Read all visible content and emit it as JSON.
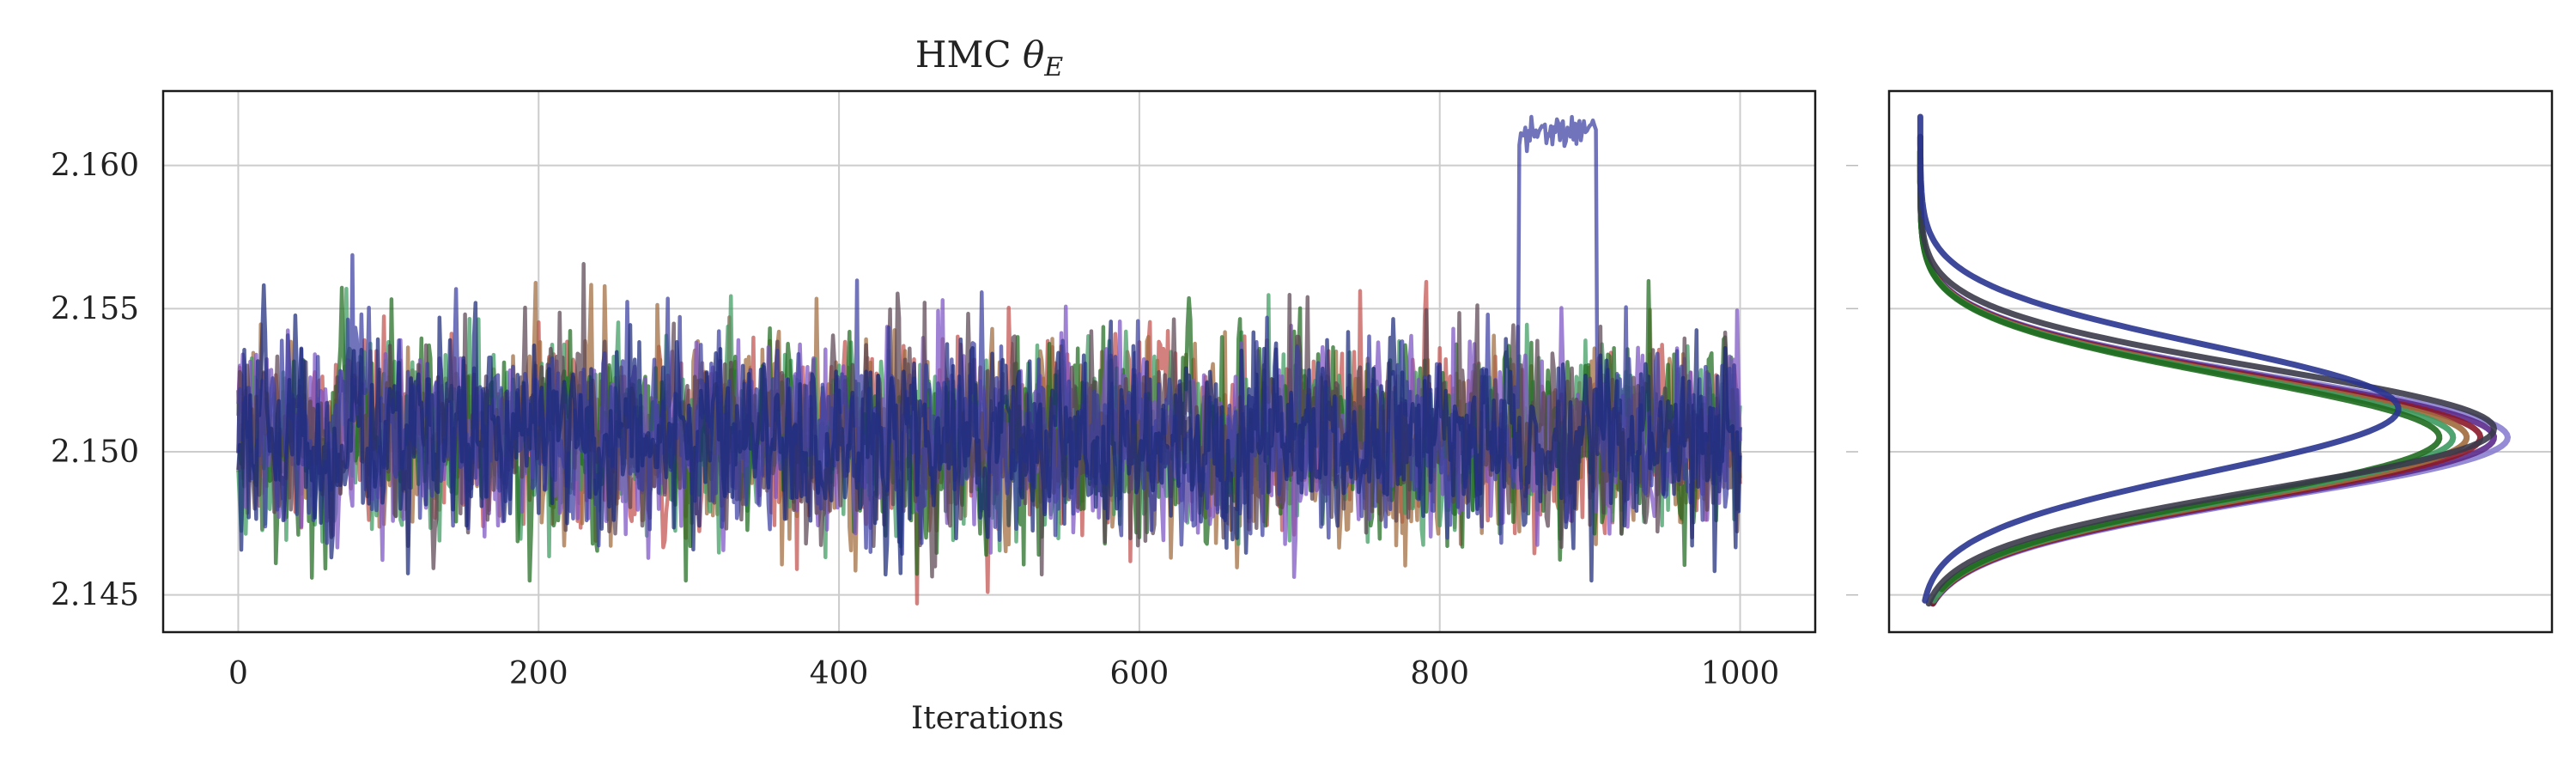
{
  "chart_data": [
    {
      "type": "line",
      "title": "HMC θ_E",
      "title_main": "HMC ",
      "title_symbol": "θ",
      "title_subscript": "E",
      "xlabel": "Iterations",
      "ylabel": "",
      "xlim": [
        -50,
        1050
      ],
      "ylim": [
        2.1437,
        2.1626
      ],
      "xticks": [
        0,
        200,
        400,
        600,
        800,
        1000
      ],
      "xtick_labels": [
        "0",
        "200",
        "400",
        "600",
        "800",
        "1000"
      ],
      "yticks": [
        2.145,
        2.15,
        2.155,
        2.16
      ],
      "ytick_labels": [
        "2.145",
        "2.150",
        "2.155",
        "2.160"
      ],
      "grid": true,
      "legend": "none",
      "n_iterations": 1000,
      "series": [
        {
          "color": "#c0504d",
          "mean": 2.1505,
          "sd": 0.0021,
          "range": [
            2.1447,
            2.1596
          ]
        },
        {
          "color": "#a06a3c",
          "mean": 2.1505,
          "sd": 0.0021,
          "range": [
            2.1455,
            2.159
          ]
        },
        {
          "color": "#3c9a5f",
          "mean": 2.1505,
          "sd": 0.0021,
          "range": [
            2.1445,
            2.1603
          ]
        },
        {
          "color": "#1f6b1f",
          "mean": 2.1505,
          "sd": 0.0021,
          "range": [
            2.1455,
            2.1592
          ]
        },
        {
          "color": "#7b52c4",
          "mean": 2.1505,
          "sd": 0.0021,
          "range": [
            2.1447,
            2.159
          ]
        },
        {
          "color": "#5a4450",
          "mean": 2.1505,
          "sd": 0.0021,
          "range": [
            2.1447,
            2.158
          ]
        },
        {
          "color": "#3a3fa0",
          "mean": 2.1505,
          "sd": 0.0021,
          "range": [
            2.1455,
            2.1617
          ]
        },
        {
          "color": "#1a2a7a",
          "mean": 2.1505,
          "sd": 0.0021,
          "range": [
            2.1455,
            2.1585
          ]
        }
      ]
    },
    {
      "type": "line",
      "orientation": "horizontal density",
      "title": "",
      "xlabel": "",
      "ylabel": "",
      "ylim": [
        2.1437,
        2.1626
      ],
      "yticks": [
        2.145,
        2.15,
        2.155,
        2.16
      ],
      "grid": true,
      "legend": "none",
      "series": [
        {
          "color": "#8a7fd0",
          "mean": 2.1505,
          "sd": 0.0021,
          "peak": 215,
          "range": [
            2.1447,
            2.161
          ]
        },
        {
          "color": "#5b2a8a",
          "mean": 2.1505,
          "sd": 0.0021,
          "peak": 210,
          "range": [
            2.1447,
            2.16
          ]
        },
        {
          "color": "#8b1a2a",
          "mean": 2.1505,
          "sd": 0.0021,
          "peak": 205,
          "range": [
            2.1447,
            2.1605
          ]
        },
        {
          "color": "#a06a3c",
          "mean": 2.1505,
          "sd": 0.0021,
          "peak": 200,
          "range": [
            2.145,
            2.1595
          ]
        },
        {
          "color": "#3c9a5f",
          "mean": 2.1505,
          "sd": 0.0021,
          "peak": 195,
          "range": [
            2.1448,
            2.1605
          ]
        },
        {
          "color": "#1f6b1f",
          "mean": 2.1505,
          "sd": 0.0021,
          "peak": 190,
          "range": [
            2.1452,
            2.1605
          ]
        },
        {
          "color": "#3a3a4a",
          "mean": 2.1508,
          "sd": 0.0021,
          "peak": 210,
          "range": [
            2.1447,
            2.161
          ]
        },
        {
          "color": "#2a3590",
          "mean": 2.1515,
          "sd": 0.0022,
          "peak": 175,
          "range": [
            2.1448,
            2.1617
          ]
        }
      ]
    }
  ]
}
